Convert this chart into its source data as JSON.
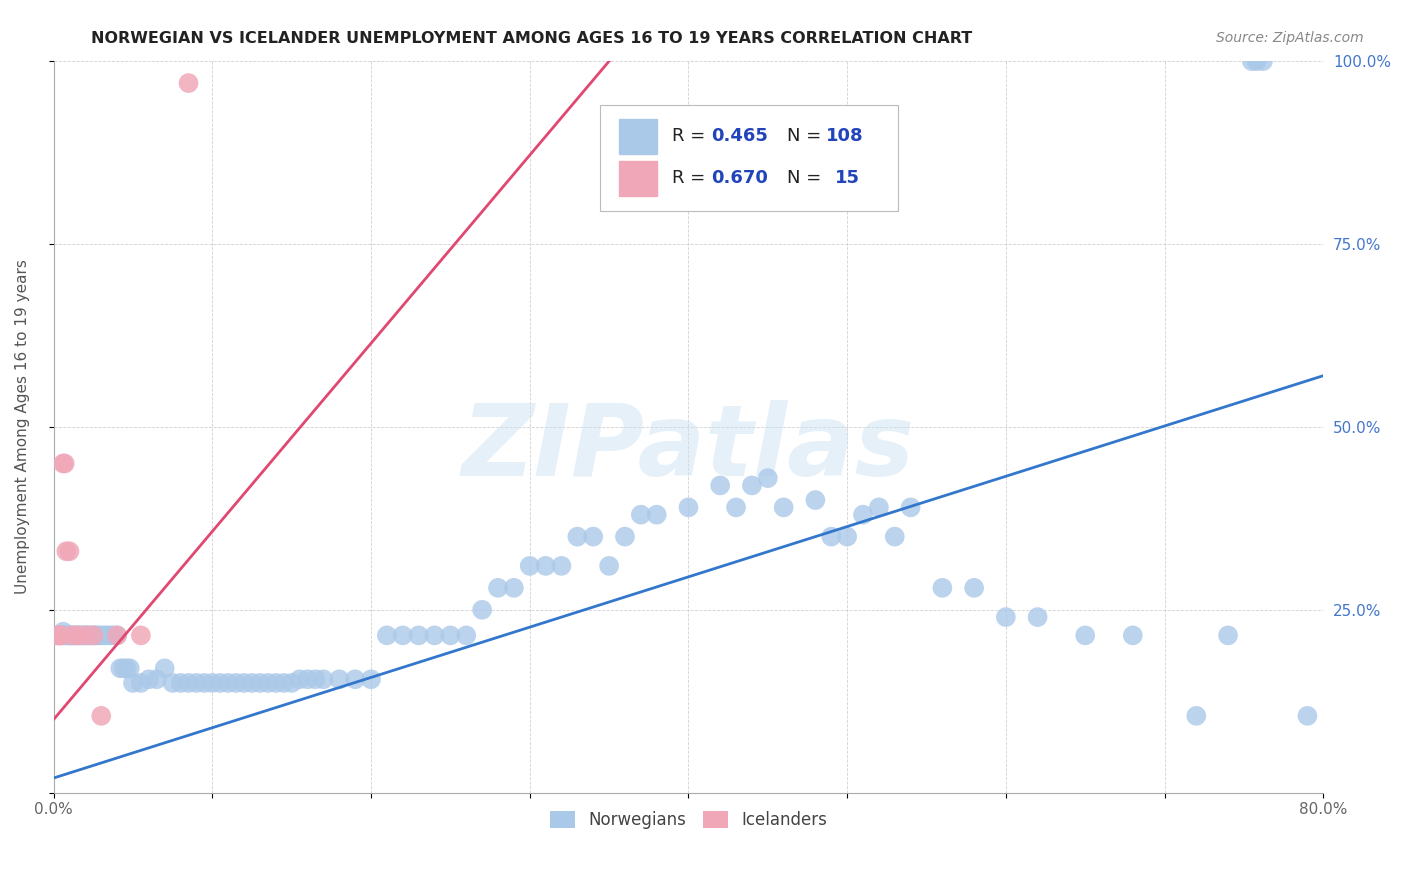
{
  "title": "NORWEGIAN VS ICELANDER UNEMPLOYMENT AMONG AGES 16 TO 19 YEARS CORRELATION CHART",
  "source": "Source: ZipAtlas.com",
  "ylabel": "Unemployment Among Ages 16 to 19 years",
  "xlim": [
    0.0,
    0.8
  ],
  "ylim": [
    0.0,
    1.0
  ],
  "xtick_positions": [
    0.0,
    0.1,
    0.2,
    0.3,
    0.4,
    0.5,
    0.6,
    0.7,
    0.8
  ],
  "xticklabels": [
    "0.0%",
    "",
    "",
    "",
    "",
    "",
    "",
    "",
    "80.0%"
  ],
  "ytick_positions": [
    0.0,
    0.25,
    0.5,
    0.75,
    1.0
  ],
  "yticklabels": [
    "",
    "25.0%",
    "50.0%",
    "75.0%",
    "100.0%"
  ],
  "norwegian_R": 0.465,
  "norwegian_N": 108,
  "icelander_R": 0.67,
  "icelander_N": 15,
  "norwegian_color": "#aac8e8",
  "icelander_color": "#f0a8b8",
  "norwegian_line_color": "#3377cc",
  "icelander_line_color": "#e04870",
  "stat_color": "#2244bb",
  "watermark": "ZIPatlas",
  "background_color": "#ffffff",
  "nor_line_x0": 0.0,
  "nor_line_y0": 0.02,
  "nor_line_x1": 0.8,
  "nor_line_y1": 0.57,
  "ice_line_x0": 0.0,
  "ice_line_y0": 0.1,
  "ice_line_x1": 0.35,
  "ice_line_y1": 1.0,
  "norwegians_x": [
    0.003,
    0.004,
    0.005,
    0.006,
    0.007,
    0.008,
    0.009,
    0.01,
    0.01,
    0.011,
    0.012,
    0.013,
    0.014,
    0.015,
    0.016,
    0.017,
    0.018,
    0.019,
    0.02,
    0.021,
    0.022,
    0.023,
    0.024,
    0.025,
    0.026,
    0.027,
    0.028,
    0.03,
    0.032,
    0.034,
    0.036,
    0.038,
    0.04,
    0.042,
    0.044,
    0.046,
    0.048,
    0.05,
    0.055,
    0.06,
    0.065,
    0.07,
    0.075,
    0.08,
    0.085,
    0.09,
    0.095,
    0.1,
    0.105,
    0.11,
    0.115,
    0.12,
    0.125,
    0.13,
    0.135,
    0.14,
    0.145,
    0.15,
    0.155,
    0.16,
    0.165,
    0.17,
    0.18,
    0.19,
    0.2,
    0.21,
    0.22,
    0.23,
    0.24,
    0.25,
    0.26,
    0.27,
    0.28,
    0.29,
    0.3,
    0.31,
    0.32,
    0.33,
    0.34,
    0.35,
    0.36,
    0.37,
    0.38,
    0.4,
    0.42,
    0.43,
    0.44,
    0.45,
    0.46,
    0.48,
    0.49,
    0.5,
    0.51,
    0.52,
    0.53,
    0.54,
    0.56,
    0.58,
    0.6,
    0.62,
    0.65,
    0.68,
    0.72,
    0.74,
    0.755,
    0.758,
    0.762,
    0.79
  ],
  "norwegians_y": [
    0.215,
    0.215,
    0.215,
    0.22,
    0.215,
    0.215,
    0.215,
    0.215,
    0.215,
    0.215,
    0.215,
    0.215,
    0.215,
    0.215,
    0.215,
    0.215,
    0.215,
    0.215,
    0.215,
    0.215,
    0.215,
    0.215,
    0.215,
    0.215,
    0.215,
    0.215,
    0.215,
    0.215,
    0.215,
    0.215,
    0.215,
    0.215,
    0.215,
    0.17,
    0.17,
    0.17,
    0.17,
    0.15,
    0.15,
    0.155,
    0.155,
    0.17,
    0.15,
    0.15,
    0.15,
    0.15,
    0.15,
    0.15,
    0.15,
    0.15,
    0.15,
    0.15,
    0.15,
    0.15,
    0.15,
    0.15,
    0.15,
    0.15,
    0.155,
    0.155,
    0.155,
    0.155,
    0.155,
    0.155,
    0.155,
    0.215,
    0.215,
    0.215,
    0.215,
    0.215,
    0.215,
    0.25,
    0.28,
    0.28,
    0.31,
    0.31,
    0.31,
    0.35,
    0.35,
    0.31,
    0.35,
    0.38,
    0.38,
    0.39,
    0.42,
    0.39,
    0.42,
    0.43,
    0.39,
    0.4,
    0.35,
    0.35,
    0.38,
    0.39,
    0.35,
    0.39,
    0.28,
    0.28,
    0.24,
    0.24,
    0.215,
    0.215,
    0.105,
    0.215,
    1.0,
    1.0,
    1.0,
    0.105
  ],
  "icelanders_x": [
    0.002,
    0.003,
    0.004,
    0.005,
    0.006,
    0.007,
    0.008,
    0.01,
    0.012,
    0.015,
    0.02,
    0.025,
    0.03,
    0.04,
    0.055
  ],
  "icelanders_y": [
    0.215,
    0.215,
    0.215,
    0.215,
    0.45,
    0.45,
    0.33,
    0.33,
    0.215,
    0.215,
    0.215,
    0.215,
    0.105,
    0.215,
    0.215
  ],
  "icelanders_high_x": [
    0.085
  ],
  "icelanders_high_y": [
    0.97
  ]
}
